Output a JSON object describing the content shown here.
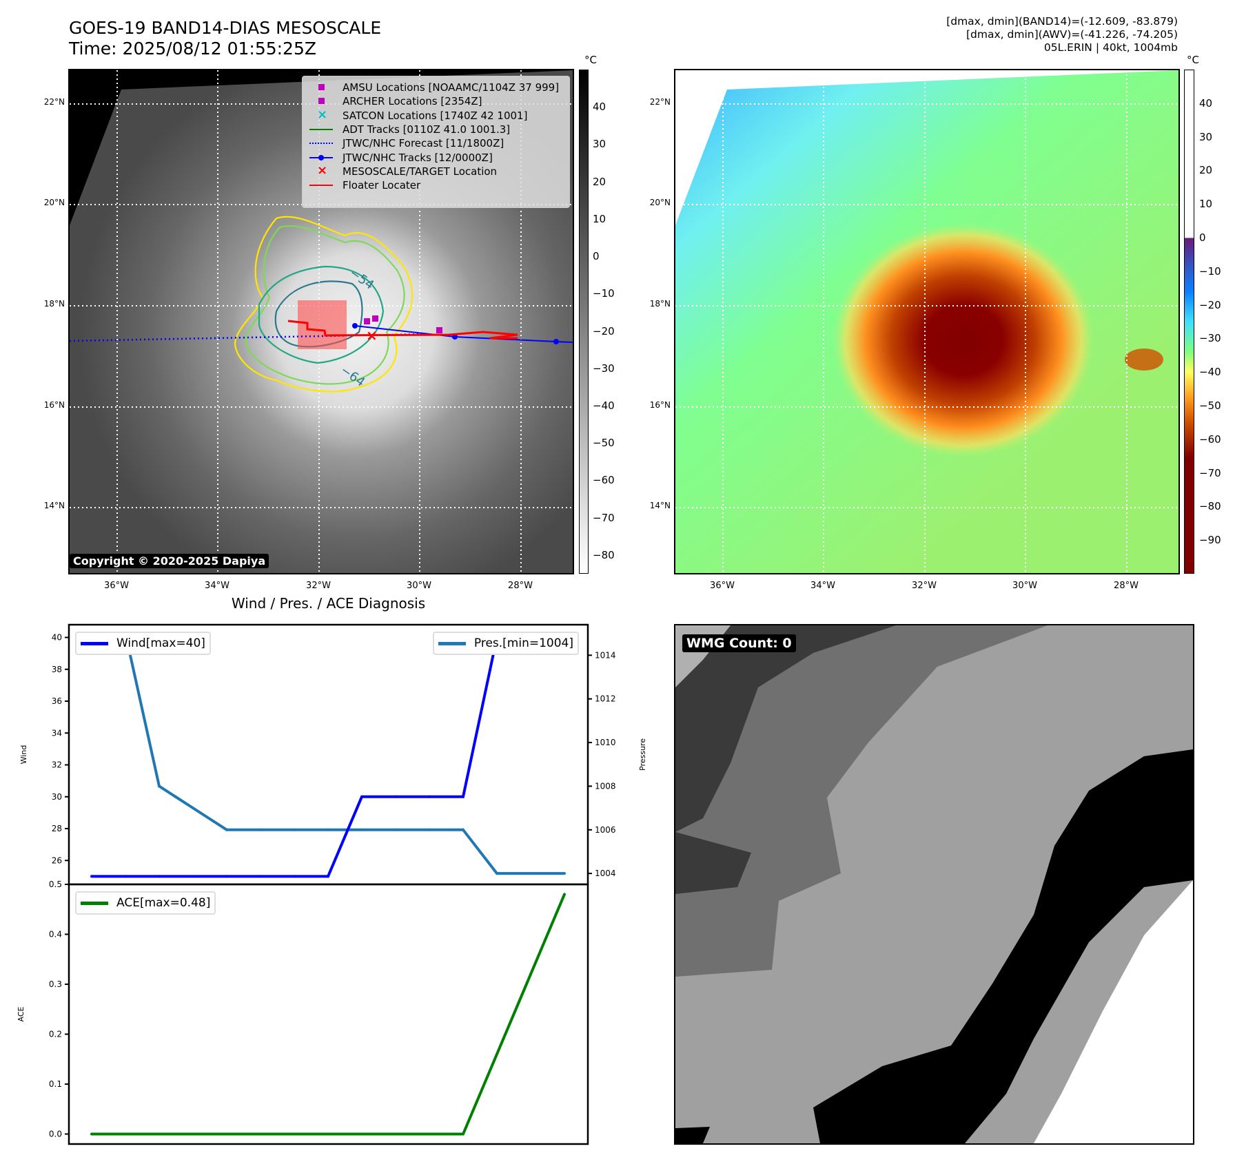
{
  "header": {
    "title": "GOES-19 BAND14-DIAS MESOSCALE",
    "time": "Time: 2025/08/12 01:55:25Z",
    "info_line1": "[dmax, dmin](BAND14)=(-12.609, -83.879)",
    "info_line2": "[dmax, dmin](AWV)=(-41.226, -74.205)",
    "info_line3": "05L.ERIN | 40kt, 1004mb"
  },
  "map_left": {
    "lat_ticks": [
      "22°N",
      "20°N",
      "18°N",
      "16°N",
      "14°N"
    ],
    "lon_ticks": [
      "36°W",
      "34°W",
      "32°W",
      "30°W",
      "28°W"
    ],
    "contour_labels": [
      "−54",
      "−64"
    ],
    "copyright": "Copyright © 2020-2025 Dapiya",
    "legend": [
      {
        "label": "AMSU Locations [NOAAMC/1104Z 37 999]",
        "icon": "square-marker-icon",
        "color": "#bf00bf"
      },
      {
        "label": "ARCHER Locations [2354Z]",
        "icon": "square-marker-icon",
        "color": "#bf00bf"
      },
      {
        "label": "SATCON Locations [1740Z 42 1001]",
        "icon": "x-marker-icon",
        "color": "#00bfbf"
      },
      {
        "label": "ADT Tracks [0110Z 41.0 1001.3]",
        "icon": "solid-line-icon",
        "color": "#008000"
      },
      {
        "label": "JTWC/NHC Forecast [11/1800Z]",
        "icon": "dotted-line-icon",
        "color": "#0000ff"
      },
      {
        "label": "JTWC/NHC Tracks [12/0000Z]",
        "icon": "line-dot-icon",
        "color": "#0000ff"
      },
      {
        "label": "MESOSCALE/TARGET Location",
        "icon": "x-marker-icon",
        "color": "#ff0000"
      },
      {
        "label": "Floater Locater",
        "icon": "solid-line-icon",
        "color": "#ff0000"
      }
    ],
    "colorbar": {
      "unit": "°C",
      "ticks": [
        "40",
        "30",
        "20",
        "10",
        "0",
        "−10",
        "−20",
        "−30",
        "−40",
        "−50",
        "−60",
        "−70",
        "−80"
      ],
      "range": [
        -85,
        50
      ]
    }
  },
  "map_right": {
    "lat_ticks": [
      "22°N",
      "20°N",
      "18°N",
      "16°N",
      "14°N"
    ],
    "lon_ticks": [
      "36°W",
      "34°W",
      "32°W",
      "30°W",
      "28°W"
    ],
    "colorbar": {
      "unit": "°C",
      "ticks": [
        "40",
        "30",
        "20",
        "10",
        "0",
        "−10",
        "−20",
        "−30",
        "−40",
        "−50",
        "−60",
        "−70",
        "−80",
        "−90"
      ],
      "range": [
        -100,
        50
      ]
    }
  },
  "wmg": {
    "label": "WMG Count: 0"
  },
  "chart_data": [
    {
      "type": "line",
      "title": "Wind / Pres. / ACE Diagnosis",
      "x": [
        0,
        1,
        2,
        3,
        4,
        5,
        6,
        7,
        8,
        9,
        10,
        11,
        12,
        13,
        14
      ],
      "series": [
        {
          "name": "Wind[max=40]",
          "axis": "left",
          "color": "#0000ff",
          "values": [
            25,
            25,
            25,
            25,
            25,
            25,
            25,
            25,
            30,
            30,
            30,
            30,
            40,
            40,
            40
          ]
        },
        {
          "name": "Pres.[min=1004]",
          "axis": "right",
          "color": "#1f77b4",
          "values": [
            1015,
            1015,
            1008,
            1007,
            1006,
            1006,
            1006,
            1006,
            1006,
            1006,
            1006,
            1006,
            1004,
            1004,
            1004
          ]
        }
      ],
      "ylabel": "Wind",
      "ylabel_right": "Pressure",
      "ylim": [
        24.5,
        40.8
      ],
      "ylim_right": [
        1003.5,
        1015.4
      ],
      "yticks": [
        "26",
        "28",
        "30",
        "32",
        "34",
        "36",
        "38",
        "40"
      ],
      "yticks_right": [
        "1004",
        "1006",
        "1008",
        "1010",
        "1012",
        "1014"
      ]
    },
    {
      "type": "line",
      "x": [
        0,
        1,
        2,
        3,
        4,
        5,
        6,
        7,
        8,
        9,
        10,
        11,
        12,
        13,
        14
      ],
      "series": [
        {
          "name": "ACE[max=0.48]",
          "color": "#008000",
          "values": [
            0,
            0,
            0,
            0,
            0,
            0,
            0,
            0,
            0,
            0,
            0,
            0,
            0.16,
            0.32,
            0.48
          ]
        }
      ],
      "ylabel": "ACE",
      "ylim": [
        -0.02,
        0.5
      ],
      "yticks": [
        "0.0",
        "0.1",
        "0.2",
        "0.3",
        "0.4",
        "0.5"
      ]
    }
  ]
}
